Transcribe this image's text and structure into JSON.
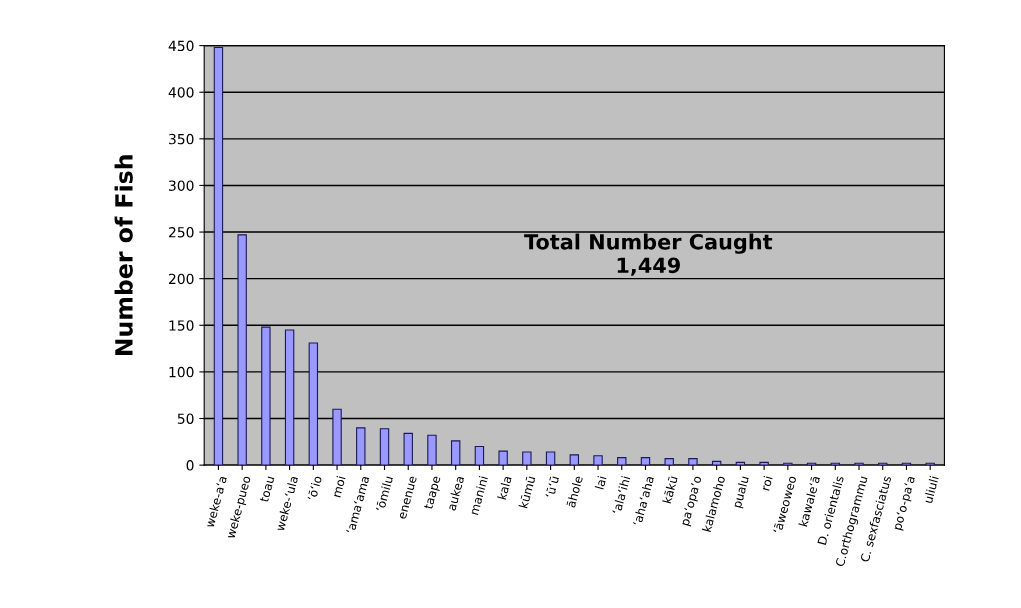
{
  "chart_data": {
    "type": "bar",
    "ylabel": "Number of Fish",
    "categories": [
      "weke-a‘a",
      "weke-pueo",
      "toau",
      "weke-‘ula",
      "‘ō‘io",
      "moi",
      "‘ama‘ama",
      "‘ōmilu",
      "enenue",
      "taape",
      "aukea",
      "manini",
      "kala",
      "kūmū",
      "‘ū‘ū",
      "āhole",
      "lai",
      "‘ala‘ihi",
      "‘aha‘aha",
      "kākū",
      "pa‘opa‘o",
      "kalamoho",
      "pualu",
      "roi",
      "‘āweoweo",
      "kawale‘ā",
      "D. orientalis",
      "C.orthogrammu",
      "C. sexfasciatus",
      "po‘o-pa‘a",
      "uliuli"
    ],
    "values": [
      448,
      247,
      148,
      145,
      131,
      60,
      40,
      39,
      34,
      32,
      26,
      20,
      15,
      14,
      14,
      11,
      10,
      8,
      8,
      7,
      7,
      4,
      3,
      3,
      2,
      2,
      2,
      2,
      2,
      2,
      2
    ],
    "color": "#9999ff",
    "ylim": [
      0,
      450
    ],
    "yticks": [
      0,
      50,
      100,
      150,
      200,
      250,
      300,
      350,
      400,
      450
    ],
    "grid": "y",
    "annotations": [
      "Total Number Caught\n1,449"
    ]
  }
}
